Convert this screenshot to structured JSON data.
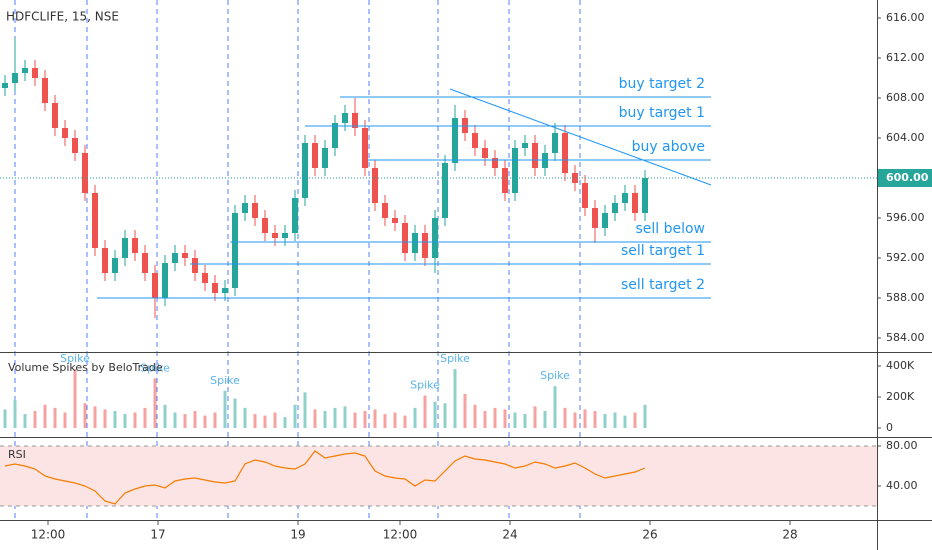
{
  "chart_data": [
    {
      "type": "candlestick",
      "title": "HDFCLIFE, 15, NSE",
      "x": [
        0.5,
        1.5,
        2.5,
        3.5,
        4.5,
        5.5,
        6.5,
        7.5,
        8.5,
        9.5,
        10.5,
        11.5,
        12.5,
        13.5,
        14.5,
        15.5,
        16.5,
        17.5,
        18.5,
        19.5,
        20.5,
        21.5,
        22.5,
        23.5,
        24.5,
        25.5,
        26.5,
        27.5,
        28.5,
        29.5,
        30.5,
        31.5,
        32.5,
        33.5,
        34.5,
        35.5,
        36.5,
        37.5,
        38.5,
        39.5,
        40.5,
        41.5,
        42.5,
        43.5,
        44.5,
        45.5,
        46.5,
        47.5,
        48.5,
        49.5,
        50.5,
        51.5,
        52.5,
        53.5,
        54.5,
        55.5,
        56.5,
        57.5,
        58.5,
        59.5,
        60.5,
        61.5,
        62.5,
        63.5,
        64.5
      ],
      "open": [
        609,
        609.5,
        610.5,
        611,
        610,
        607.5,
        605,
        604,
        602.5,
        598.5,
        593,
        590.5,
        592,
        594,
        592.5,
        590.5,
        588,
        591.5,
        592.5,
        592,
        590.5,
        589.5,
        588.5,
        589,
        596.5,
        597.5,
        596,
        594.5,
        594,
        594.5,
        598,
        603.5,
        601,
        603,
        605.5,
        606.5,
        605,
        601,
        597.5,
        596,
        595.5,
        592.5,
        594.5,
        592,
        596,
        601.5,
        606,
        604.5,
        603,
        602,
        601,
        598.5,
        603,
        603.5,
        601,
        602.5,
        604.5,
        600.5,
        599.5,
        597,
        595,
        596.5,
        597.5,
        598.5,
        596.5
      ],
      "high": [
        610.3,
        614,
        611.8,
        611.8,
        610.8,
        608.3,
        605.8,
        604.8,
        603.3,
        599.3,
        593.8,
        592.8,
        594.8,
        594.8,
        593.3,
        591.3,
        592.3,
        593.3,
        593.3,
        592.8,
        591.3,
        590.3,
        589.8,
        597.3,
        598.3,
        598.3,
        596.8,
        595.3,
        595.3,
        598.8,
        604.3,
        604.3,
        603.8,
        606.3,
        607.3,
        608,
        605.8,
        601.8,
        598.3,
        596.8,
        596.3,
        595.3,
        595.3,
        596.8,
        602.3,
        607.3,
        606.8,
        605.3,
        603.8,
        602.8,
        601.8,
        603.8,
        604.3,
        604.3,
        603.3,
        605.5,
        605.3,
        601.3,
        600.3,
        597.8,
        597.3,
        598.3,
        599.3,
        599.3,
        600.8
      ],
      "low": [
        608.2,
        608.7,
        609.7,
        609.2,
        606.7,
        604.2,
        603.2,
        601.7,
        597.7,
        592.2,
        589.7,
        589.7,
        591.2,
        591.7,
        589.7,
        586,
        587.2,
        590.7,
        591.2,
        589.7,
        588.7,
        587.7,
        587.7,
        588.2,
        595.7,
        595.2,
        593.7,
        593.2,
        593.2,
        593.7,
        597.2,
        600.2,
        600.2,
        602.2,
        604.7,
        604.2,
        600.2,
        596.7,
        595.2,
        594.7,
        591.7,
        591.7,
        591.2,
        590.5,
        595.2,
        600.7,
        603.7,
        602.2,
        601.2,
        600.2,
        597.7,
        597.7,
        602.2,
        600.2,
        600.2,
        601.7,
        599.7,
        598.7,
        596.2,
        593.5,
        594.2,
        595.7,
        596.7,
        595.7,
        595.7
      ],
      "close": [
        609.5,
        610.5,
        611,
        610,
        607.5,
        605,
        604,
        602.5,
        598.5,
        593,
        590.5,
        592,
        594,
        592.5,
        590.5,
        588,
        591.5,
        592.5,
        592,
        590.5,
        589.5,
        588.5,
        589,
        596.5,
        597.5,
        596,
        594.5,
        594,
        594.5,
        598,
        603.5,
        601,
        603,
        605.5,
        606.5,
        605,
        601,
        597.5,
        596,
        595.5,
        592.5,
        594.5,
        592,
        596,
        601.5,
        606,
        604.5,
        603,
        602,
        601,
        598.5,
        603,
        603.5,
        601,
        602.5,
        604.5,
        600.5,
        599.5,
        597,
        595,
        596.5,
        597.5,
        598.5,
        596.5,
        600
      ],
      "up_color": "#26a69a",
      "down_color": "#ef5350",
      "xlim": [
        0,
        87.7
      ],
      "xticks": [
        {
          "value": 4.8,
          "label": "12:00"
        },
        {
          "value": 15.8,
          "label": "17"
        },
        {
          "value": 29.8,
          "label": "19"
        },
        {
          "value": 40,
          "label": "12:00"
        },
        {
          "value": 51,
          "label": "24"
        },
        {
          "value": 65,
          "label": "26"
        },
        {
          "value": 79,
          "label": "28"
        }
      ],
      "ylim": [
        582.6,
        617.8
      ],
      "yticks": [
        {
          "value": 584,
          "label": "584.00"
        },
        {
          "value": 588,
          "label": "588.00"
        },
        {
          "value": 592,
          "label": "592.00"
        },
        {
          "value": 596,
          "label": "596.00"
        },
        {
          "value": 600,
          "label": "600.00"
        },
        {
          "value": 604,
          "label": "604.00"
        },
        {
          "value": 608,
          "label": "608.00"
        },
        {
          "value": 612,
          "label": "612.00"
        },
        {
          "value": 616,
          "label": "616.00"
        }
      ],
      "last_price": {
        "value": 600,
        "label": "600.00"
      },
      "session_breaks": [
        1.5,
        8.7,
        15.7,
        22.8,
        29.8,
        36.9,
        43.8,
        50.9,
        58
      ],
      "annotation_color": "#2196f3",
      "levels": [
        {
          "label": "buy target 2",
          "value": 608.1,
          "x": [
            34,
            71.1
          ]
        },
        {
          "label": "buy target 1",
          "value": 605.2,
          "x": [
            30.5,
            71.1
          ]
        },
        {
          "label": "buy above",
          "value": 601.8,
          "x": [
            36.8,
            71.1
          ]
        },
        {
          "label": "sell below",
          "value": 593.6,
          "x": [
            23,
            71.1
          ]
        },
        {
          "label": "sell target 1",
          "value": 591.4,
          "x": [
            19,
            71.1
          ]
        },
        {
          "label": "sell target 2",
          "value": 588,
          "x": [
            9.7,
            71.1
          ]
        }
      ],
      "trendline": {
        "x": [
          45,
          71.1
        ],
        "y": [
          608.9,
          599.3
        ]
      }
    },
    {
      "type": "volume",
      "title": "Volume Spikes by BeloTrade",
      "values": [
        120000,
        180000,
        90000,
        110000,
        150000,
        130000,
        100000,
        380000,
        160000,
        140000,
        120000,
        110000,
        90000,
        100000,
        130000,
        320000,
        150000,
        100000,
        90000,
        110000,
        80000,
        100000,
        240000,
        190000,
        130000,
        90000,
        80000,
        100000,
        70000,
        150000,
        230000,
        120000,
        110000,
        130000,
        140000,
        100000,
        110000,
        120000,
        90000,
        100000,
        80000,
        130000,
        210000,
        170000,
        160000,
        380000,
        220000,
        150000,
        110000,
        130000,
        120000,
        100000,
        90000,
        140000,
        110000,
        270000,
        130000,
        100000,
        120000,
        110000,
        90000,
        100000,
        80000,
        100000,
        150000
      ],
      "up_color": "#8fd0c8",
      "down_color": "#f5a3a1",
      "ylim": [
        -58000,
        484000
      ],
      "yticks": [
        {
          "value": 400000,
          "label": "400K"
        },
        {
          "value": 200000,
          "label": "200K"
        },
        0
      ],
      "annotation_color": "#5ab4e8",
      "annotations": [
        {
          "text": "Spike",
          "x": 7.5
        },
        {
          "text": "Spike",
          "x": 15.5
        },
        {
          "text": "Spike",
          "x": 22.5
        },
        {
          "text": "Spike",
          "x": 42.5
        },
        {
          "text": "Spike",
          "x": 45.5
        },
        {
          "text": "Spike",
          "x": 55.5
        }
      ]
    },
    {
      "type": "line",
      "title": "RSI",
      "values": [
        60,
        62,
        60,
        57,
        50,
        47,
        45,
        43,
        40,
        35,
        25,
        22,
        33,
        37,
        40,
        41,
        38,
        45,
        47,
        48,
        46,
        44,
        43,
        45,
        62,
        66,
        64,
        60,
        58,
        57,
        62,
        75,
        68,
        70,
        72,
        73,
        70,
        55,
        50,
        48,
        47,
        40,
        46,
        45,
        55,
        65,
        70,
        67,
        66,
        64,
        62,
        58,
        60,
        64,
        62,
        58,
        60,
        63,
        58,
        52,
        48,
        50,
        52,
        54,
        58
      ],
      "color": "#f57c00",
      "ylim": [
        6,
        88
      ],
      "yticks": [
        {
          "value": 80,
          "label": "80.00"
        },
        {
          "value": 40,
          "label": "40.00"
        }
      ],
      "band": [
        20,
        80
      ],
      "band_color": "#fce4e4"
    }
  ]
}
